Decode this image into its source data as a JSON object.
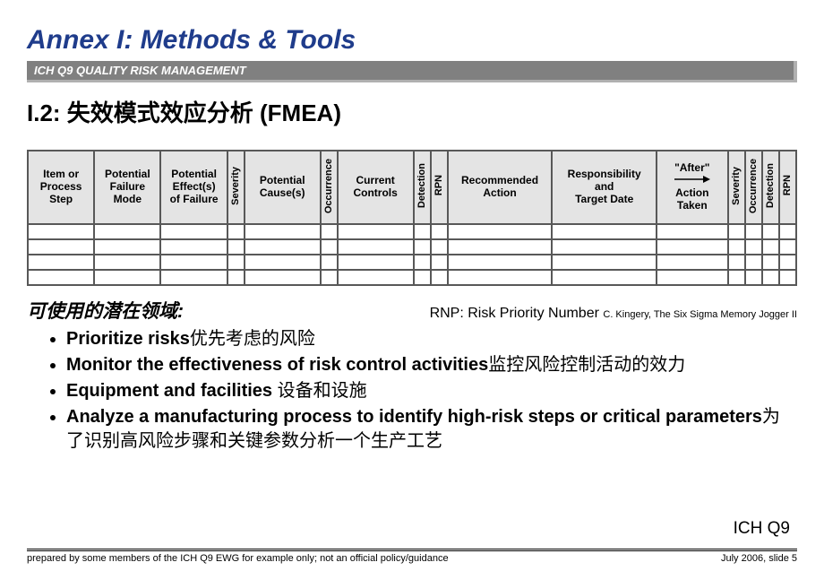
{
  "title": "Annex I: Methods & Tools",
  "banner": "ICH Q9 QUALITY RISK MANAGEMENT",
  "section": "I.2: 失效模式效应分析 (FMEA)",
  "table": {
    "headers": [
      "Item or Process Step",
      "Potential Failure Mode",
      "Potential Effect(s) of Failure",
      "Severity",
      "Potential Cause(s)",
      "Occurrence",
      "Current Controls",
      "Detection",
      "RPN",
      "Recommended Action",
      "Responsibility and Target Date",
      "\"After\" Action Taken",
      "Severity",
      "Occurrence",
      "Detection",
      "RPN"
    ],
    "vertical_cols": [
      3,
      5,
      7,
      8,
      12,
      13,
      14,
      15
    ],
    "empty_rows": 4
  },
  "subhead": "可使用的潜在领域:",
  "rnp": "RNP: Risk Priority Number",
  "rnp_cite": "C. Kingery, The Six Sigma Memory Jogger II",
  "bullets": [
    {
      "bold": "Prioritize risks",
      "rest": "优先考虑的风险"
    },
    {
      "bold": "Monitor the effectiveness of risk control activities",
      "rest": "监控风险控制活动的效力"
    },
    {
      "bold": "Equipment and facilities ",
      "rest": "设备和设施"
    },
    {
      "bold": "Analyze a manufacturing process to identify high-risk steps or critical parameters",
      "rest": "为了识别高风险步骤和关键参数分析一个生产工艺"
    }
  ],
  "ich_tag": "ICH Q9",
  "footer_left": "prepared by some members of the ICH Q9 EWG for example only; not an official policy/guidance",
  "footer_right": "July 2006, slide 5",
  "after_arrow_label": "\"After\""
}
